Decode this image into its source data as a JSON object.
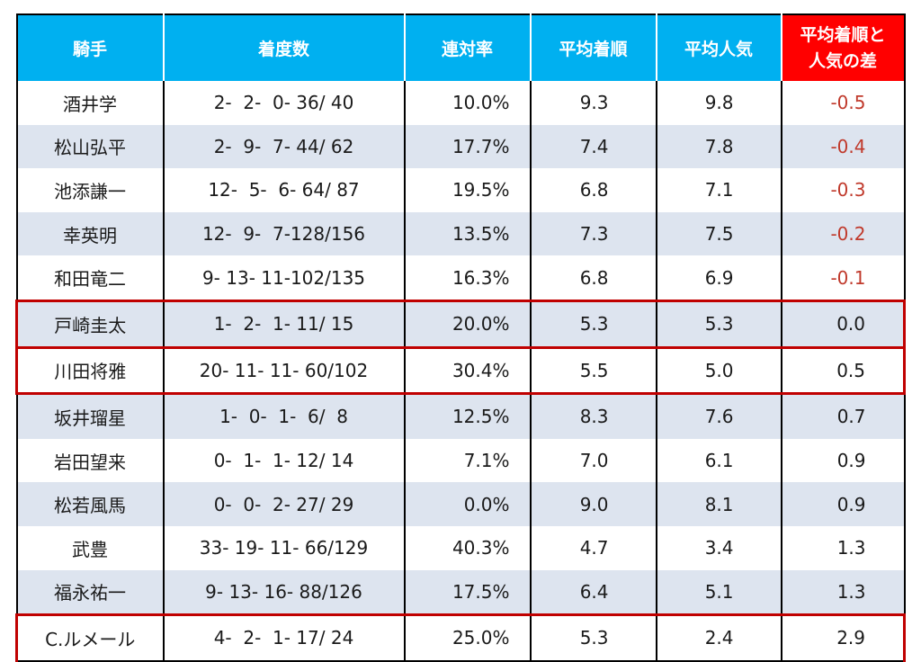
{
  "table": {
    "headers": [
      "騎手",
      "着度数",
      "連対率",
      "平均着順",
      "平均人気",
      "平均着順と\n人気の差"
    ],
    "header_colors": {
      "default": "#00b0f0",
      "diff": "#ff0000"
    },
    "highlight_color": "#c00000",
    "negative_color": "#c0392b",
    "rows": [
      {
        "jockey": "酒井学",
        "record": "2-  2-  0- 36/ 40",
        "rate": "10.0%",
        "avg_finish": "9.3",
        "avg_popularity": "9.8",
        "diff": "-0.5",
        "highlight": false
      },
      {
        "jockey": "松山弘平",
        "record": "2-  9-  7- 44/ 62",
        "rate": "17.7%",
        "avg_finish": "7.4",
        "avg_popularity": "7.8",
        "diff": "-0.4",
        "highlight": false
      },
      {
        "jockey": "池添謙一",
        "record": "12-  5-  6- 64/ 87",
        "rate": "19.5%",
        "avg_finish": "6.8",
        "avg_popularity": "7.1",
        "diff": "-0.3",
        "highlight": false
      },
      {
        "jockey": "幸英明",
        "record": "12-  9-  7-128/156",
        "rate": "13.5%",
        "avg_finish": "7.3",
        "avg_popularity": "7.5",
        "diff": "-0.2",
        "highlight": false
      },
      {
        "jockey": "和田竜二",
        "record": "9- 13- 11-102/135",
        "rate": "16.3%",
        "avg_finish": "6.8",
        "avg_popularity": "6.9",
        "diff": "-0.1",
        "highlight": false
      },
      {
        "jockey": "戸崎圭太",
        "record": "1-  2-  1- 11/ 15",
        "rate": "20.0%",
        "avg_finish": "5.3",
        "avg_popularity": "5.3",
        "diff": "0.0",
        "highlight": true
      },
      {
        "jockey": "川田将雅",
        "record": "20- 11- 11- 60/102",
        "rate": "30.4%",
        "avg_finish": "5.5",
        "avg_popularity": "5.0",
        "diff": "0.5",
        "highlight": true
      },
      {
        "jockey": "坂井瑠星",
        "record": "1-  0-  1-  6/  8",
        "rate": "12.5%",
        "avg_finish": "8.3",
        "avg_popularity": "7.6",
        "diff": "0.7",
        "highlight": false
      },
      {
        "jockey": "岩田望来",
        "record": "0-  1-  1- 12/ 14",
        "rate": "7.1%",
        "avg_finish": "7.0",
        "avg_popularity": "6.1",
        "diff": "0.9",
        "highlight": false
      },
      {
        "jockey": "松若風馬",
        "record": "0-  0-  2- 27/ 29",
        "rate": "0.0%",
        "avg_finish": "9.0",
        "avg_popularity": "8.1",
        "diff": "0.9",
        "highlight": false
      },
      {
        "jockey": "武豊",
        "record": "33- 19- 11- 66/129",
        "rate": "40.3%",
        "avg_finish": "4.7",
        "avg_popularity": "3.4",
        "diff": "1.3",
        "highlight": false
      },
      {
        "jockey": "福永祐一",
        "record": "9- 13- 16- 88/126",
        "rate": "17.5%",
        "avg_finish": "6.4",
        "avg_popularity": "5.1",
        "diff": "1.3",
        "highlight": false
      },
      {
        "jockey": "C.ルメール",
        "record": "4-  2-  1- 17/ 24",
        "rate": "25.0%",
        "avg_finish": "5.3",
        "avg_popularity": "2.4",
        "diff": "2.9",
        "highlight": true
      }
    ]
  }
}
